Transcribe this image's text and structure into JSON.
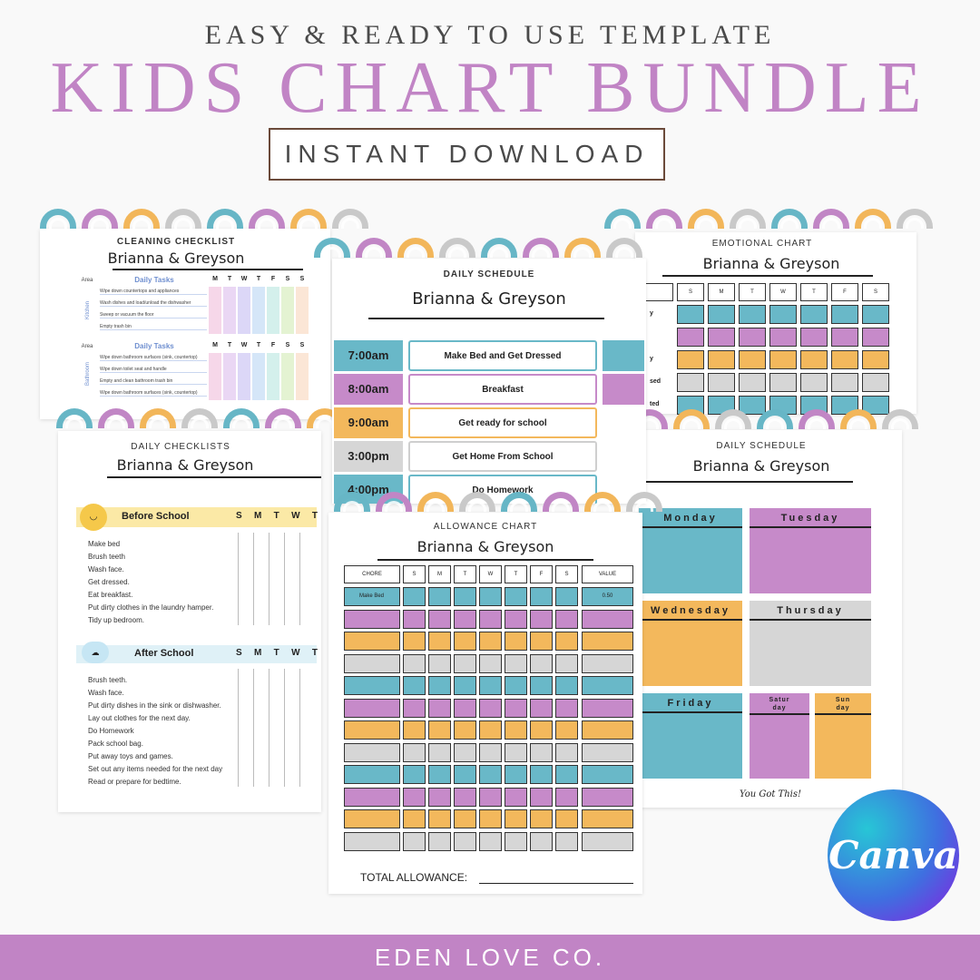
{
  "header": {
    "kicker": "EASY & READY TO USE TEMPLATE",
    "title": "KIDS CHART BUNDLE",
    "button": "INSTANT DOWNLOAD"
  },
  "cleaning": {
    "title": "CLEANING CHECKLIST",
    "name": "Brianna & Greyson",
    "area_col": "Area",
    "tasks_col": "Daily Tasks",
    "days": [
      "M",
      "T",
      "W",
      "T",
      "F",
      "S",
      "S"
    ],
    "room1": "Kitchen",
    "room1_tasks": [
      "Wipe down countertops and appliances",
      "Wash dishes and load/unload the dishwasher",
      "Sweep or vacuum the floor",
      "Empty trash bin"
    ],
    "room2": "Bathroom",
    "room2_tasks": [
      "Wipe down bathroom surfaces (sink, countertop)",
      "Wipe down toilet seat and handle",
      "Empty and clean bathroom trash bin",
      "Wipe down bathroom surfaces (sink, countertop)"
    ]
  },
  "daily_checklists": {
    "title": "DAILY CHECKLISTS",
    "name": "Brianna & Greyson",
    "before": "Before School",
    "after": "After School",
    "days": [
      "S",
      "M",
      "T",
      "W",
      "T"
    ],
    "before_items": [
      "Make bed",
      "Brush teeth",
      "Wash face.",
      "Get dressed.",
      "Eat breakfast.",
      "Put dirty clothes in the laundry hamper.",
      "Tidy up bedroom."
    ],
    "after_items": [
      "Brush teeth.",
      "Wash face.",
      "Put dirty dishes in the sink or dishwasher.",
      "Lay out clothes for the next day.",
      "Do Homework",
      "Pack school bag.",
      "Put away toys and games.",
      "Set out any items needed for the next day",
      "Read or prepare for bedtime."
    ]
  },
  "daily_schedule": {
    "title": "DAILY SCHEDULE",
    "name": "Brianna & Greyson",
    "rows": [
      {
        "time": "7:00am",
        "task": "Make Bed and Get Dressed"
      },
      {
        "time": "8:00am",
        "task": "Breakfast"
      },
      {
        "time": "9:00am",
        "task": "Get ready for school"
      },
      {
        "time": "3:00pm",
        "task": "Get Home From School"
      },
      {
        "time": "4:00pm",
        "task": "Do Homework"
      }
    ]
  },
  "emotional": {
    "title": "EMOTIONAL CHART",
    "name": "Brianna & Greyson",
    "days": [
      "S",
      "M",
      "T",
      "W",
      "T",
      "F",
      "S"
    ],
    "row_labels": [
      "y",
      "",
      "y",
      "sed",
      "ted"
    ]
  },
  "weekly": {
    "title": "DAILY SCHEDULE",
    "name": "Brianna & Greyson",
    "days": [
      "Monday",
      "Tuesday",
      "Wednesday",
      "Thursday",
      "Friday",
      "Satur day",
      "Sun day"
    ],
    "footer": "You Got This!"
  },
  "allowance": {
    "title": "ALLOWANCE CHART",
    "name": "Brianna & Greyson",
    "chore_col": "CHORE",
    "value_col": "VALUE",
    "days": [
      "S",
      "M",
      "T",
      "W",
      "T",
      "F",
      "S"
    ],
    "first_chore": "Make Bed",
    "first_value": "0.50",
    "total_label": "TOTAL ALLOWANCE:"
  },
  "brand": {
    "canva": "Canva",
    "footer": "EDEN LOVE CO."
  },
  "colors": {
    "purple": "#c184c5",
    "teal": "#69b8c8",
    "orange": "#f3b85c",
    "gray": "#d6d6d6"
  }
}
